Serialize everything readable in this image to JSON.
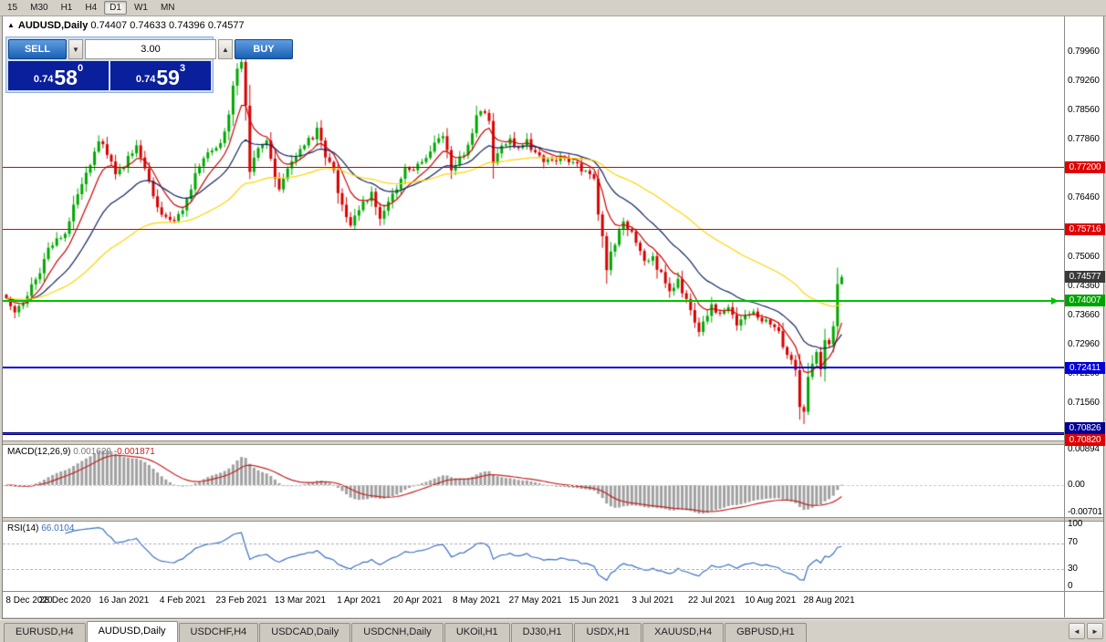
{
  "toolbar": {
    "timeframes": [
      {
        "label": "15",
        "active": false
      },
      {
        "label": "M30",
        "active": false
      },
      {
        "label": "H1",
        "active": false
      },
      {
        "label": "H4",
        "active": false
      },
      {
        "label": "D1",
        "active": true
      },
      {
        "label": "W1",
        "active": false
      },
      {
        "label": "MN",
        "active": false
      }
    ]
  },
  "chart": {
    "collapse_icon": "▲",
    "symbol_title": "AUDUSD,Daily",
    "ohlc": "0.74407 0.74633 0.74396 0.74577"
  },
  "one_click": {
    "sell_label": "SELL",
    "buy_label": "BUY",
    "volume": "3.00",
    "spin_down": "▼",
    "spin_up": "▲",
    "sell_price": {
      "prefix": "0.74",
      "big": "58",
      "sup": "0"
    },
    "buy_price": {
      "prefix": "0.74",
      "big": "59",
      "sup": "3"
    }
  },
  "price_axis": {
    "ticks": [
      {
        "label": "0.79960",
        "price": 0.7996
      },
      {
        "label": "0.79260",
        "price": 0.7926
      },
      {
        "label": "0.78560",
        "price": 0.7856
      },
      {
        "label": "0.77860",
        "price": 0.7786
      },
      {
        "label": "0.76460",
        "price": 0.7646
      },
      {
        "label": "0.75060",
        "price": 0.7506
      },
      {
        "label": "0.74360",
        "price": 0.7436
      },
      {
        "label": "0.73660",
        "price": 0.7366
      },
      {
        "label": "0.72960",
        "price": 0.7296
      },
      {
        "label": "0.72260",
        "price": 0.7226
      },
      {
        "label": "0.71560",
        "price": 0.7156
      }
    ],
    "current": {
      "label": "0.74577",
      "price": 0.74577,
      "bg": "#3a3a3a"
    },
    "levels": [
      {
        "name": "resistance-upper",
        "label": "0.77200",
        "price": 0.772,
        "color": "#e00000",
        "label_bg": "#e00000",
        "thickness": 1,
        "label_dy": 0,
        "arrow": false
      },
      {
        "name": "resistance-mid",
        "label": "0.75716",
        "price": 0.75716,
        "color": "#e00000",
        "label_bg": "#e00000",
        "thickness": 1,
        "label_dy": 0,
        "arrow": false
      },
      {
        "name": "support-green",
        "label": "0.74007",
        "price": 0.74007,
        "color": "#00c300",
        "label_bg": "#00a300",
        "thickness": 2,
        "label_dy": 0,
        "arrow": true
      },
      {
        "name": "support-blue",
        "label": "0.72411",
        "price": 0.72411,
        "color": "#0000dc",
        "label_bg": "#0000dc",
        "thickness": 2,
        "label_dy": 0,
        "arrow": false
      },
      {
        "name": "support-navy",
        "label": "0.70826",
        "price": 0.70826,
        "color": "#000085",
        "label_bg": "#000098",
        "thickness": 3,
        "label_dy": -6,
        "arrow": false
      },
      {
        "name": "level-low-red",
        "label": "0.70820",
        "price": 0.7082,
        "color": "#e00000",
        "label_bg": "#e00000",
        "thickness": 1,
        "label_dy": 7,
        "arrow": false
      }
    ]
  },
  "macd": {
    "label": "MACD(12,26,9)",
    "main_value": "0.001629",
    "signal_value": "-0.001871",
    "axis": [
      "0.00894",
      "0.00",
      "-0.00701"
    ]
  },
  "rsi": {
    "label": "RSI(14)",
    "value": "66.0104",
    "axis": [
      "100",
      "70",
      "30",
      "0"
    ]
  },
  "date_axis": [
    {
      "label": "8 Dec 2020",
      "i": 0
    },
    {
      "label": "28 Dec 2020",
      "i": 14
    },
    {
      "label": "16 Jan 2021",
      "i": 28
    },
    {
      "label": "4 Feb 2021",
      "i": 42
    },
    {
      "label": "23 Feb 2021",
      "i": 56
    },
    {
      "label": "13 Mar 2021",
      "i": 70
    },
    {
      "label": "1 Apr 2021",
      "i": 84
    },
    {
      "label": "20 Apr 2021",
      "i": 98
    },
    {
      "label": "8 May 2021",
      "i": 112
    },
    {
      "label": "27 May 2021",
      "i": 126
    },
    {
      "label": "15 Jun 2021",
      "i": 140
    },
    {
      "label": "3 Jul 2021",
      "i": 154
    },
    {
      "label": "22 Jul 2021",
      "i": 168
    },
    {
      "label": "10 Aug 2021",
      "i": 182
    },
    {
      "label": "28 Aug 2021",
      "i": 196
    }
  ],
  "tabs": [
    {
      "label": "EURUSD,H4",
      "active": false
    },
    {
      "label": "AUDUSD,Daily",
      "active": true
    },
    {
      "label": "USDCHF,H4",
      "active": false
    },
    {
      "label": "USDCAD,Daily",
      "active": false
    },
    {
      "label": "USDCNH,Daily",
      "active": false
    },
    {
      "label": "UKOil,H1",
      "active": false
    },
    {
      "label": "DJ30,H1",
      "active": false
    },
    {
      "label": "USDX,H1",
      "active": false
    },
    {
      "label": "XAUUSD,H4",
      "active": false
    },
    {
      "label": "GBPUSD,H1",
      "active": false
    }
  ],
  "tab_scroll": {
    "left": "◄",
    "right": "►"
  },
  "chart_data": {
    "type": "candlestick",
    "symbol": "AUDUSD",
    "timeframe": "Daily",
    "candles": 200,
    "up_color": "#00a800",
    "down_color": "#d60000",
    "ma_lines": [
      {
        "period": 8,
        "color": "#cc0000"
      },
      {
        "period": 21,
        "color": "#10235e"
      },
      {
        "period": 55,
        "color": "#ffd400"
      }
    ],
    "macd_bar_color": "#a0a0a0",
    "macd_signal_color": "#c32222",
    "rsi_color": "#3a6fc4",
    "close_anchors": [
      [
        0,
        0.7415
      ],
      [
        2,
        0.7372
      ],
      [
        4,
        0.7398
      ],
      [
        7,
        0.745
      ],
      [
        10,
        0.752
      ],
      [
        14,
        0.7568
      ],
      [
        17,
        0.766
      ],
      [
        19,
        0.77
      ],
      [
        22,
        0.779
      ],
      [
        24,
        0.7755
      ],
      [
        26,
        0.77
      ],
      [
        28,
        0.7722
      ],
      [
        31,
        0.7775
      ],
      [
        34,
        0.768
      ],
      [
        37,
        0.7608
      ],
      [
        40,
        0.7598
      ],
      [
        42,
        0.7622
      ],
      [
        45,
        0.77
      ],
      [
        48,
        0.7758
      ],
      [
        51,
        0.7772
      ],
      [
        53,
        0.785
      ],
      [
        54,
        0.7915
      ],
      [
        55,
        0.7958
      ],
      [
        56,
        0.798
      ],
      [
        57,
        0.7868
      ],
      [
        58,
        0.771
      ],
      [
        60,
        0.7768
      ],
      [
        62,
        0.779
      ],
      [
        64,
        0.77
      ],
      [
        65,
        0.766
      ],
      [
        67,
        0.7712
      ],
      [
        70,
        0.7758
      ],
      [
        73,
        0.7795
      ],
      [
        74,
        0.7812
      ],
      [
        76,
        0.775
      ],
      [
        78,
        0.7708
      ],
      [
        80,
        0.7625
      ],
      [
        82,
        0.7585
      ],
      [
        84,
        0.7618
      ],
      [
        87,
        0.7658
      ],
      [
        89,
        0.7605
      ],
      [
        92,
        0.765
      ],
      [
        95,
        0.7718
      ],
      [
        98,
        0.7722
      ],
      [
        101,
        0.776
      ],
      [
        104,
        0.7798
      ],
      [
        106,
        0.7718
      ],
      [
        108,
        0.7742
      ],
      [
        110,
        0.7768
      ],
      [
        112,
        0.7838
      ],
      [
        113,
        0.7858
      ],
      [
        115,
        0.7828
      ],
      [
        116,
        0.7732
      ],
      [
        118,
        0.7768
      ],
      [
        120,
        0.779
      ],
      [
        122,
        0.7762
      ],
      [
        124,
        0.778
      ],
      [
        126,
        0.7758
      ],
      [
        129,
        0.7732
      ],
      [
        132,
        0.7742
      ],
      [
        135,
        0.7736
      ],
      [
        138,
        0.7704
      ],
      [
        140,
        0.7688
      ],
      [
        141,
        0.7608
      ],
      [
        142,
        0.7556
      ],
      [
        143,
        0.748
      ],
      [
        145,
        0.7542
      ],
      [
        147,
        0.7584
      ],
      [
        149,
        0.756
      ],
      [
        151,
        0.7518
      ],
      [
        152,
        0.7492
      ],
      [
        154,
        0.75
      ],
      [
        156,
        0.7462
      ],
      [
        158,
        0.7424
      ],
      [
        160,
        0.745
      ],
      [
        162,
        0.74
      ],
      [
        164,
        0.7345
      ],
      [
        165,
        0.7322
      ],
      [
        166,
        0.7358
      ],
      [
        168,
        0.7386
      ],
      [
        170,
        0.7364
      ],
      [
        172,
        0.738
      ],
      [
        174,
        0.7344
      ],
      [
        176,
        0.7362
      ],
      [
        178,
        0.7378
      ],
      [
        180,
        0.7356
      ],
      [
        182,
        0.7343
      ],
      [
        184,
        0.733
      ],
      [
        185,
        0.7297
      ],
      [
        187,
        0.7258
      ],
      [
        188,
        0.7234
      ],
      [
        189,
        0.7145
      ],
      [
        190,
        0.7135
      ],
      [
        191,
        0.7215
      ],
      [
        192,
        0.7255
      ],
      [
        193,
        0.7272
      ],
      [
        194,
        0.7236
      ],
      [
        195,
        0.731
      ],
      [
        196,
        0.7297
      ],
      [
        197,
        0.734
      ],
      [
        198,
        0.74407
      ],
      [
        199,
        0.74577
      ]
    ],
    "wick_overrides": {
      "56": {
        "high": 0.8005
      },
      "58": {
        "low": 0.7692
      },
      "190": {
        "low": 0.7106
      },
      "199": {
        "high": 0.74633,
        "low": 0.74396
      }
    }
  }
}
